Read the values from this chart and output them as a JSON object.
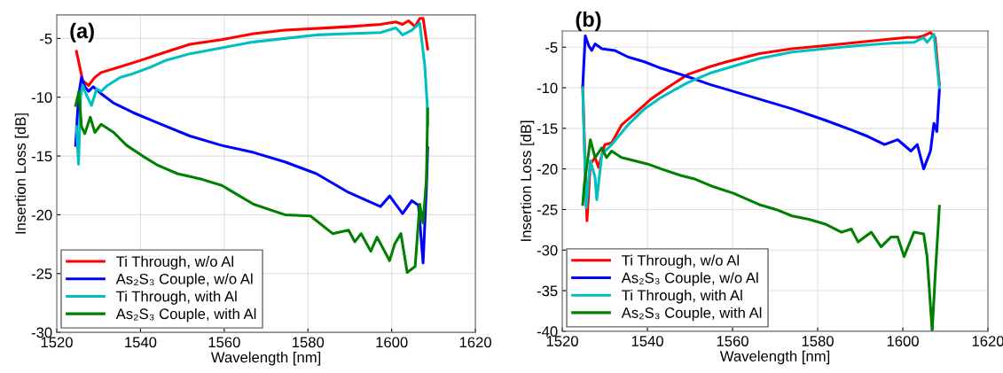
{
  "chart_data": [
    {
      "type": "line",
      "title": "(a)",
      "xlabel": "Wavelength [nm]",
      "ylabel": "Insertion Loss [dB]",
      "xlim": [
        1520,
        1620
      ],
      "xticks": [
        1520,
        1540,
        1560,
        1580,
        1600,
        1620
      ],
      "ylim": [
        -30,
        -3
      ],
      "yticks": [
        -30,
        -25,
        -20,
        -15,
        -10,
        -5
      ],
      "grid": true,
      "legend": "bottom left",
      "line_style": "solid",
      "series": [
        {
          "name": "Ti Through, w/o Al",
          "color": "#ff0000",
          "x": [
            1524.7,
            1526.2,
            1527.6,
            1529.1,
            1530.6,
            1535.2,
            1539.7,
            1546.5,
            1551.8,
            1559.4,
            1567,
            1574.5,
            1582,
            1589.7,
            1597.3,
            1601,
            1602.6,
            1604,
            1605.6,
            1606.7,
            1607.5,
            1608.6
          ],
          "values": [
            -6.1,
            -8.6,
            -9.0,
            -8.3,
            -7.9,
            -7.4,
            -6.9,
            -6.1,
            -5.5,
            -5.1,
            -4.6,
            -4.3,
            -4.15,
            -4.0,
            -3.8,
            -3.6,
            -3.8,
            -3.5,
            -4.0,
            -3.3,
            -3.3,
            -5.9
          ]
        },
        {
          "name": "As₂S₃ Couple, w/o Al",
          "color": "#0000ff",
          "x": [
            1524.5,
            1525.2,
            1525.9,
            1526.7,
            1527.6,
            1528.7,
            1530.6,
            1533.6,
            1538.2,
            1544.2,
            1551.8,
            1559.4,
            1567,
            1574.5,
            1582,
            1589.7,
            1593.5,
            1597.3,
            1599.5,
            1602.6,
            1604.8,
            1606.4,
            1607.5,
            1608.3,
            1608.6
          ],
          "values": [
            -14.1,
            -9.9,
            -8.3,
            -9.1,
            -9.5,
            -9.1,
            -9.7,
            -10.5,
            -11.3,
            -12.2,
            -13.3,
            -14.1,
            -14.7,
            -15.5,
            -16.5,
            -18.1,
            -18.7,
            -19.3,
            -18.4,
            -19.9,
            -18.8,
            -19.2,
            -24.1,
            -17.7,
            -14.3
          ]
        },
        {
          "name": "Ti Through, with Al",
          "color": "#00bfbf",
          "x": [
            1524.7,
            1525.2,
            1525.7,
            1526.2,
            1527.2,
            1528.3,
            1529.5,
            1530.6,
            1532.1,
            1535.2,
            1538.2,
            1542,
            1545.8,
            1551.8,
            1559.4,
            1567,
            1574.5,
            1582,
            1589.7,
            1597.3,
            1601,
            1602.6,
            1604.8,
            1606.7,
            1607.9,
            1608.5,
            1608.6
          ],
          "values": [
            -12.5,
            -15.7,
            -9.9,
            -9.0,
            -9.9,
            -10.7,
            -9.3,
            -9.5,
            -9.0,
            -8.3,
            -8.0,
            -7.5,
            -6.9,
            -6.3,
            -5.8,
            -5.3,
            -5.0,
            -4.7,
            -4.6,
            -4.5,
            -4.1,
            -4.7,
            -4.3,
            -3.7,
            -7.3,
            -10.7,
            -12.3
          ]
        },
        {
          "name": "As₂S₃ Couple, with Al",
          "color": "#008000",
          "x": [
            1524.5,
            1525.3,
            1525.9,
            1526.7,
            1528,
            1529.1,
            1530.6,
            1533.6,
            1536.7,
            1540.5,
            1544.2,
            1548.8,
            1554.8,
            1559.4,
            1567,
            1574.5,
            1580.6,
            1585.9,
            1589.7,
            1591.2,
            1592.7,
            1595,
            1596.5,
            1599.5,
            1600.7,
            1602.2,
            1603.7,
            1605.6,
            1606.7,
            1607.5,
            1608.3,
            1608.6
          ],
          "values": [
            -10.7,
            -9.5,
            -12.5,
            -13.1,
            -11.7,
            -13.0,
            -12.3,
            -13.0,
            -14.1,
            -15.0,
            -15.8,
            -16.5,
            -17.0,
            -17.5,
            -19.1,
            -20.0,
            -20.1,
            -21.6,
            -21.3,
            -22.3,
            -21.6,
            -23.1,
            -21.9,
            -23.9,
            -22.5,
            -21.6,
            -24.9,
            -24.4,
            -19.1,
            -20.7,
            -16.9,
            -11.0
          ]
        }
      ]
    },
    {
      "type": "line",
      "title": "(b)",
      "xlabel": "Wavelength [nm]",
      "ylabel": "Insertion Loss [dB]",
      "xlim": [
        1520,
        1620
      ],
      "xticks": [
        1520,
        1540,
        1560,
        1580,
        1600,
        1620
      ],
      "ylim": [
        -40,
        -3
      ],
      "yticks": [
        -40,
        -35,
        -30,
        -25,
        -20,
        -15,
        -10,
        -5
      ],
      "grid": true,
      "legend": "bottom left",
      "line_style": "solid",
      "series": [
        {
          "name": "Ti Through, w/o Al",
          "color": "#ff0000",
          "x": [
            1524.8,
            1525.8,
            1526.6,
            1527.7,
            1528.5,
            1530,
            1531.6,
            1533.9,
            1537,
            1540.8,
            1544.7,
            1549.3,
            1554.7,
            1558.6,
            1566.3,
            1574,
            1581.8,
            1589.5,
            1597.2,
            1601,
            1603.4,
            1604.9,
            1606.5,
            1607.6,
            1608.6
          ],
          "values": [
            -9.9,
            -26.4,
            -19.4,
            -18.6,
            -19.8,
            -17.0,
            -16.8,
            -14.6,
            -13.2,
            -11.4,
            -10.0,
            -8.4,
            -7.4,
            -6.8,
            -5.8,
            -5.2,
            -4.8,
            -4.4,
            -4.0,
            -3.8,
            -3.8,
            -3.6,
            -3.2,
            -3.8,
            -9.6
          ]
        },
        {
          "name": "As₂S₃ Couple, w/o Al",
          "color": "#0000ff",
          "x": [
            1524.8,
            1525.4,
            1526.2,
            1526.9,
            1527.7,
            1529.3,
            1532.3,
            1535.4,
            1539.3,
            1543.2,
            1549.3,
            1554.7,
            1558.6,
            1566.3,
            1574,
            1581.8,
            1587.9,
            1591.8,
            1595.7,
            1598.8,
            1601.9,
            1603.4,
            1604.9,
            1606.5,
            1607.3,
            1608,
            1608.6
          ],
          "values": [
            -9.9,
            -3.6,
            -4.8,
            -5.4,
            -4.6,
            -5.2,
            -5.4,
            -6.2,
            -6.8,
            -7.6,
            -8.6,
            -9.6,
            -10.2,
            -11.4,
            -12.6,
            -14.0,
            -15.2,
            -16.0,
            -17.0,
            -16.4,
            -17.8,
            -17.0,
            -20.0,
            -17.8,
            -14.4,
            -15.4,
            -10.2
          ]
        },
        {
          "name": "Ti Through, with Al",
          "color": "#00bfbf",
          "x": [
            1524.8,
            1525.6,
            1526.6,
            1527.7,
            1528.1,
            1529.3,
            1531.6,
            1535.4,
            1539.3,
            1543.2,
            1549.3,
            1554.7,
            1558.6,
            1566.3,
            1574,
            1581.8,
            1589.5,
            1597.2,
            1602.6,
            1604.9,
            1605.7,
            1607.3,
            1608.6
          ],
          "values": [
            -10.0,
            -24.8,
            -19.0,
            -21.0,
            -23.8,
            -18.2,
            -17.0,
            -14.6,
            -12.6,
            -11.2,
            -9.4,
            -8.2,
            -7.6,
            -6.4,
            -5.6,
            -5.2,
            -4.8,
            -4.5,
            -4.4,
            -3.8,
            -4.4,
            -3.4,
            -10.0
          ]
        },
        {
          "name": "As₂S₃ Couple, with Al",
          "color": "#008000",
          "x": [
            1524.8,
            1525.2,
            1526.6,
            1527.7,
            1529.3,
            1530.4,
            1531.6,
            1533.9,
            1537,
            1540.1,
            1543.2,
            1547.8,
            1550.9,
            1555.5,
            1560.2,
            1566.3,
            1570.2,
            1574,
            1577.9,
            1581.8,
            1585.6,
            1587.9,
            1589.5,
            1592.6,
            1594.9,
            1597.2,
            1598.8,
            1600.3,
            1602.6,
            1604.9,
            1605.7,
            1606.9,
            1607.6,
            1608.6
          ],
          "values": [
            -24.4,
            -21.8,
            -16.4,
            -18.6,
            -17.4,
            -18.6,
            -17.8,
            -18.6,
            -19.0,
            -19.4,
            -20.0,
            -20.8,
            -21.2,
            -22.2,
            -23.0,
            -24.4,
            -25.0,
            -25.8,
            -26.2,
            -26.8,
            -27.8,
            -27.4,
            -29.0,
            -27.8,
            -29.6,
            -28.4,
            -28.4,
            -30.8,
            -27.8,
            -28.0,
            -30.8,
            -40.0,
            -33.2,
            -24.6
          ]
        }
      ]
    }
  ]
}
